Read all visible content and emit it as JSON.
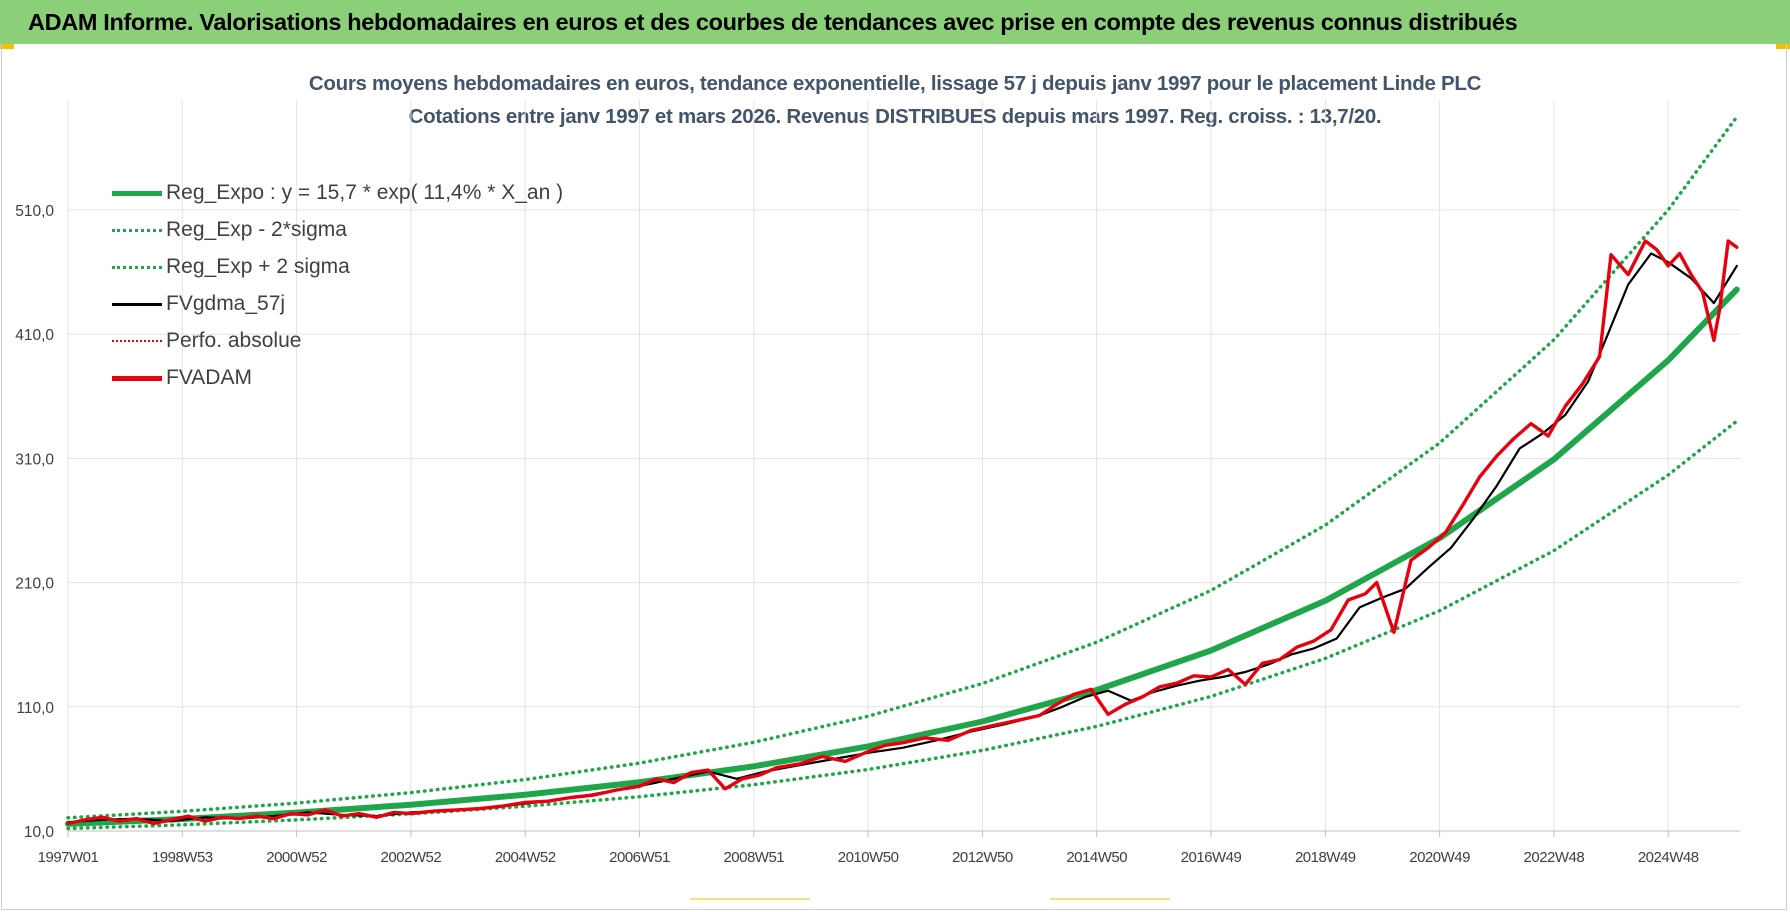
{
  "banner": {
    "title": "ADAM Informe. Valorisations hebdomadaires en euros et des courbes de tendances avec prise en compte des revenus connus distribués",
    "color": "#8ccf79"
  },
  "chart_data": {
    "type": "line",
    "title": "Cours moyens hebdomadaires en euros, tendance exponentielle, lissage 57 j depuis janv 1997 pour le placement Linde PLC",
    "subtitle": "Cotations entre janv 1997 et mars 2026. Revenus DISTRIBUES depuis mars 1997. Reg. croiss. : 13,7/20.",
    "xlabel": "",
    "ylabel": "",
    "x_range_years": [
      1997.0,
      2026.2
    ],
    "ylim": [
      10,
      580
    ],
    "yticks": [
      "510,0",
      "410,0",
      "310,0",
      "210,0",
      "110,0",
      "10,0"
    ],
    "xticks": [
      "1997W01",
      "1998W53",
      "2000W52",
      "2002W52",
      "2004W52",
      "2006W51",
      "2008W51",
      "2010W50",
      "2012W50",
      "2014W50",
      "2016W49",
      "2018W49",
      "2020W49",
      "2022W48",
      "2024W48"
    ],
    "grid": true,
    "legend_position": "top-left",
    "series": [
      {
        "name": "Reg_Expo : y = 15,7 * exp( 11,4% *  X_an )",
        "style": "solid",
        "color": "#1fa64a",
        "x": [
          1997,
          1999,
          2001,
          2003,
          2005,
          2007,
          2009,
          2011,
          2013,
          2015,
          2017,
          2019,
          2021,
          2023,
          2025,
          2026.2
        ],
        "values": [
          15.7,
          19.7,
          24.8,
          31.2,
          39.2,
          49.3,
          62.1,
          78.1,
          98.2,
          123.5,
          155.3,
          195.4,
          245.8,
          309.2,
          389.0,
          446.0
        ]
      },
      {
        "name": "Reg_Exp - 2*sigma",
        "style": "dotted",
        "color": "#1fa64a",
        "x": [
          1997,
          1999,
          2001,
          2003,
          2005,
          2007,
          2009,
          2011,
          2013,
          2015,
          2017,
          2019,
          2021,
          2023,
          2025,
          2026.2
        ],
        "values": [
          12.0,
          15.0,
          18.9,
          23.8,
          29.9,
          37.6,
          47.3,
          59.5,
          74.9,
          94.2,
          118.4,
          149.0,
          187.4,
          235.8,
          296.6,
          340.0
        ]
      },
      {
        "name": "Reg_Exp + 2 sigma",
        "style": "dotted",
        "color": "#1fa64a",
        "x": [
          1997,
          1999,
          2001,
          2003,
          2005,
          2007,
          2009,
          2011,
          2013,
          2015,
          2017,
          2019,
          2021,
          2023,
          2025,
          2026.2
        ],
        "values": [
          20.6,
          25.9,
          32.5,
          40.9,
          51.4,
          64.7,
          81.4,
          102.4,
          128.8,
          162.0,
          203.7,
          256.3,
          322.4,
          405.5,
          510.1,
          585.0
        ]
      },
      {
        "name": "FVgdma_57j",
        "style": "solid",
        "color": "#000000",
        "x": [
          1997.0,
          1997.6,
          1998.2,
          1998.8,
          1999.4,
          2000.0,
          2000.6,
          2001.2,
          2001.8,
          2002.4,
          2003.0,
          2003.6,
          2004.2,
          2004.8,
          2005.4,
          2006.0,
          2006.6,
          2007.2,
          2007.6,
          2008.2,
          2008.7,
          2009.2,
          2009.8,
          2010.4,
          2011.0,
          2011.6,
          2012.2,
          2012.8,
          2013.4,
          2014.0,
          2014.4,
          2014.8,
          2015.2,
          2015.6,
          2016.0,
          2016.4,
          2016.8,
          2017.2,
          2017.6,
          2018.0,
          2018.4,
          2018.8,
          2019.2,
          2019.6,
          2020.0,
          2020.4,
          2020.8,
          2021.2,
          2021.6,
          2022.0,
          2022.4,
          2022.8,
          2023.2,
          2023.6,
          2023.9,
          2024.3,
          2024.7,
          2025.0,
          2025.4,
          2025.8,
          2026.2
        ],
        "values": [
          17,
          19,
          20,
          18,
          21,
          20,
          22,
          25,
          23,
          22,
          25,
          26,
          28,
          31,
          34,
          38,
          43,
          48,
          52,
          58,
          52,
          58,
          63,
          68,
          73,
          77,
          83,
          90,
          96,
          103,
          110,
          118,
          123,
          115,
          122,
          127,
          131,
          134,
          138,
          144,
          152,
          157,
          165,
          190,
          198,
          205,
          222,
          238,
          262,
          288,
          318,
          330,
          345,
          372,
          405,
          450,
          475,
          468,
          455,
          435,
          465
        ]
      },
      {
        "name": "Perfo. absolue",
        "style": "dotted",
        "color": "#e0001a",
        "x": [],
        "values": []
      },
      {
        "name": "FVADAM",
        "style": "solid",
        "color": "#e8000f",
        "x": [
          1997.0,
          1997.3,
          1997.6,
          1997.9,
          1998.2,
          1998.5,
          1998.8,
          1999.1,
          1999.4,
          1999.7,
          2000.0,
          2000.3,
          2000.6,
          2000.9,
          2001.2,
          2001.5,
          2001.8,
          2002.1,
          2002.4,
          2002.7,
          2003.0,
          2003.4,
          2003.8,
          2004.2,
          2004.6,
          2005.0,
          2005.4,
          2005.8,
          2006.2,
          2006.6,
          2007.0,
          2007.3,
          2007.6,
          2007.9,
          2008.2,
          2008.5,
          2008.8,
          2009.1,
          2009.4,
          2009.8,
          2010.2,
          2010.6,
          2011.0,
          2011.3,
          2011.6,
          2012.0,
          2012.4,
          2012.8,
          2013.2,
          2013.6,
          2014.0,
          2014.3,
          2014.6,
          2014.9,
          2015.2,
          2015.5,
          2015.8,
          2016.1,
          2016.4,
          2016.7,
          2017.0,
          2017.3,
          2017.6,
          2017.9,
          2018.2,
          2018.5,
          2018.8,
          2019.1,
          2019.4,
          2019.7,
          2019.9,
          2020.2,
          2020.5,
          2020.8,
          2021.1,
          2021.4,
          2021.7,
          2022.0,
          2022.3,
          2022.6,
          2022.9,
          2023.2,
          2023.5,
          2023.8,
          2024.0,
          2024.3,
          2024.6,
          2024.8,
          2025.0,
          2025.2,
          2025.4,
          2025.6,
          2025.8,
          2025.9,
          2026.05,
          2026.2
        ],
        "values": [
          16,
          19,
          21,
          18,
          20,
          16,
          19,
          22,
          18,
          21,
          20,
          22,
          20,
          24,
          23,
          27,
          22,
          24,
          21,
          25,
          24,
          26,
          27,
          28,
          30,
          33,
          34,
          37,
          39,
          43,
          46,
          52,
          49,
          57,
          59,
          44,
          52,
          55,
          61,
          64,
          70,
          66,
          74,
          79,
          81,
          85,
          83,
          91,
          95,
          99,
          103,
          112,
          120,
          124,
          104,
          112,
          118,
          126,
          129,
          135,
          134,
          140,
          128,
          145,
          148,
          158,
          163,
          172,
          196,
          201,
          210,
          170,
          228,
          238,
          250,
          272,
          295,
          312,
          326,
          338,
          328,
          352,
          370,
          392,
          474,
          458,
          485,
          478,
          465,
          475,
          458,
          444,
          405,
          430,
          485,
          480
        ]
      }
    ]
  }
}
